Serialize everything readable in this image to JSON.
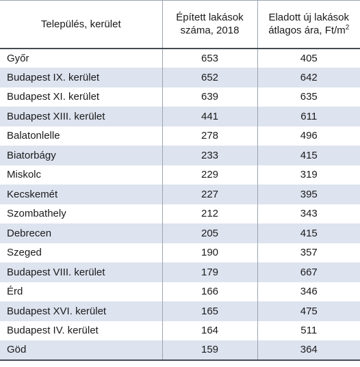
{
  "header": {
    "col1": "Település, kerület",
    "col2_line1": "Épített lakások",
    "col2_line2": "száma, 2018",
    "col3_line1": "Eladott új lakások",
    "col3_line2": "átlagos ára, Ft/m",
    "col3_sup": "2"
  },
  "rows": [
    {
      "name": "Győr",
      "built": "653",
      "price": "405"
    },
    {
      "name": "Budapest IX. kerület",
      "built": "652",
      "price": "642"
    },
    {
      "name": "Budapest XI. kerület",
      "built": "639",
      "price": "635"
    },
    {
      "name": "Budapest XIII. kerület",
      "built": "441",
      "price": "611"
    },
    {
      "name": "Balatonlelle",
      "built": "278",
      "price": "496"
    },
    {
      "name": "Biatorbágy",
      "built": "233",
      "price": "415"
    },
    {
      "name": "Miskolc",
      "built": "229",
      "price": "319"
    },
    {
      "name": "Kecskemét",
      "built": "227",
      "price": "395"
    },
    {
      "name": "Szombathely",
      "built": "212",
      "price": "343"
    },
    {
      "name": "Debrecen",
      "built": "205",
      "price": "415"
    },
    {
      "name": "Szeged",
      "built": "190",
      "price": "357"
    },
    {
      "name": "Budapest VIII. kerület",
      "built": "179",
      "price": "667"
    },
    {
      "name": "Érd",
      "built": "166",
      "price": "346"
    },
    {
      "name": "Budapest XVI. kerület",
      "built": "165",
      "price": "475"
    },
    {
      "name": "Budapest IV. kerület",
      "built": "164",
      "price": "511"
    },
    {
      "name": "Göd",
      "built": "159",
      "price": "364"
    }
  ],
  "colors": {
    "stripe": "#dde3ef",
    "rule": "#444b52",
    "grid": "#9aa3ad"
  }
}
